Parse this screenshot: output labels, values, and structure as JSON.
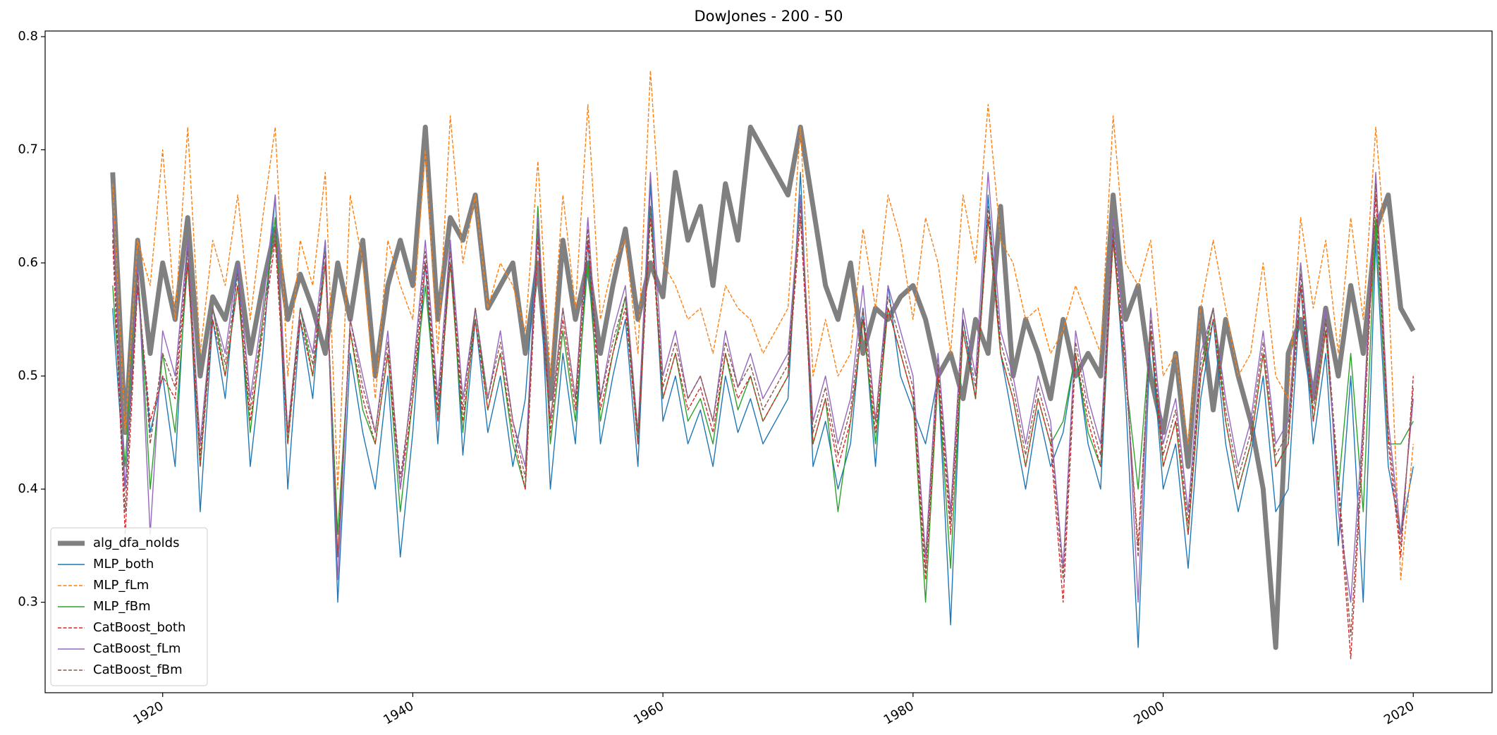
{
  "chart_data": {
    "type": "line",
    "title": "DowJones - 200 - 50",
    "x": [
      1916,
      1917,
      1918,
      1919,
      1920,
      1921,
      1922,
      1923,
      1924,
      1925,
      1926,
      1927,
      1928,
      1929,
      1930,
      1931,
      1932,
      1933,
      1934,
      1935,
      1936,
      1937,
      1938,
      1939,
      1940,
      1941,
      1942,
      1943,
      1944,
      1945,
      1946,
      1947,
      1948,
      1949,
      1950,
      1951,
      1952,
      1953,
      1954,
      1955,
      1956,
      1957,
      1958,
      1959,
      1960,
      1961,
      1962,
      1963,
      1964,
      1965,
      1966,
      1967,
      1968,
      1969,
      1970,
      1971,
      1972,
      1973,
      1974,
      1975,
      1976,
      1977,
      1978,
      1979,
      1980,
      1981,
      1982,
      1983,
      1984,
      1985,
      1986,
      1987,
      1988,
      1989,
      1990,
      1991,
      1992,
      1993,
      1994,
      1995,
      1996,
      1997,
      1998,
      1999,
      2000,
      2001,
      2002,
      2003,
      2004,
      2005,
      2006,
      2007,
      2008,
      2009,
      2010,
      2011,
      2012,
      2013,
      2014,
      2015,
      2016,
      2017,
      2018,
      2019,
      2020
    ],
    "series": [
      {
        "name": "alg_dfa_nolds",
        "color": "#808080",
        "linewidth": 7,
        "linestyle": "solid",
        "values": [
          0.68,
          0.45,
          0.62,
          0.52,
          0.6,
          0.55,
          0.64,
          0.5,
          0.57,
          0.55,
          0.6,
          0.52,
          0.58,
          0.63,
          0.55,
          0.59,
          0.56,
          0.52,
          0.6,
          0.55,
          0.62,
          0.5,
          0.58,
          0.62,
          0.58,
          0.72,
          0.55,
          0.64,
          0.62,
          0.66,
          0.56,
          0.58,
          0.6,
          0.52,
          0.6,
          0.48,
          0.62,
          0.55,
          0.6,
          0.52,
          0.58,
          0.63,
          0.55,
          0.6,
          0.57,
          0.68,
          0.62,
          0.65,
          0.58,
          0.67,
          0.62,
          0.72,
          0.7,
          0.68,
          0.66,
          0.72,
          0.65,
          0.58,
          0.55,
          0.6,
          0.52,
          0.56,
          0.55,
          0.57,
          0.58,
          0.55,
          0.5,
          0.52,
          0.48,
          0.55,
          0.52,
          0.65,
          0.5,
          0.55,
          0.52,
          0.48,
          0.55,
          0.5,
          0.52,
          0.5,
          0.66,
          0.55,
          0.58,
          0.5,
          0.45,
          0.52,
          0.42,
          0.56,
          0.47,
          0.55,
          0.5,
          0.46,
          0.4,
          0.26,
          0.52,
          0.55,
          0.48,
          0.56,
          0.5,
          0.58,
          0.52,
          0.63,
          0.66,
          0.56,
          0.54
        ]
      },
      {
        "name": "MLP_both",
        "color": "#1f77b4",
        "linewidth": 1.4,
        "linestyle": "solid",
        "values": [
          0.56,
          0.4,
          0.58,
          0.45,
          0.5,
          0.42,
          0.62,
          0.38,
          0.55,
          0.48,
          0.6,
          0.42,
          0.52,
          0.66,
          0.4,
          0.55,
          0.48,
          0.62,
          0.3,
          0.52,
          0.45,
          0.4,
          0.5,
          0.34,
          0.45,
          0.6,
          0.44,
          0.62,
          0.43,
          0.55,
          0.45,
          0.5,
          0.42,
          0.48,
          0.63,
          0.4,
          0.52,
          0.44,
          0.62,
          0.44,
          0.5,
          0.55,
          0.42,
          0.67,
          0.46,
          0.5,
          0.44,
          0.47,
          0.42,
          0.5,
          0.45,
          0.48,
          0.44,
          0.46,
          0.48,
          0.68,
          0.42,
          0.46,
          0.4,
          0.44,
          0.56,
          0.42,
          0.58,
          0.5,
          0.47,
          0.44,
          0.5,
          0.28,
          0.55,
          0.48,
          0.66,
          0.52,
          0.46,
          0.4,
          0.47,
          0.42,
          0.45,
          0.52,
          0.44,
          0.4,
          0.63,
          0.48,
          0.26,
          0.54,
          0.4,
          0.44,
          0.33,
          0.48,
          0.55,
          0.44,
          0.38,
          0.43,
          0.5,
          0.38,
          0.4,
          0.58,
          0.44,
          0.52,
          0.35,
          0.5,
          0.3,
          0.62,
          0.42,
          0.36,
          0.42
        ]
      },
      {
        "name": "MLP_fLm",
        "color": "#ff7f0e",
        "linewidth": 1.4,
        "linestyle": "dashed",
        "values": [
          0.67,
          0.45,
          0.62,
          0.58,
          0.7,
          0.55,
          0.72,
          0.52,
          0.62,
          0.58,
          0.66,
          0.55,
          0.64,
          0.72,
          0.5,
          0.62,
          0.58,
          0.68,
          0.4,
          0.66,
          0.6,
          0.48,
          0.62,
          0.58,
          0.55,
          0.7,
          0.52,
          0.73,
          0.6,
          0.66,
          0.56,
          0.6,
          0.58,
          0.54,
          0.69,
          0.5,
          0.66,
          0.56,
          0.74,
          0.55,
          0.6,
          0.62,
          0.52,
          0.77,
          0.6,
          0.58,
          0.55,
          0.56,
          0.52,
          0.58,
          0.56,
          0.55,
          0.52,
          0.54,
          0.56,
          0.72,
          0.5,
          0.55,
          0.5,
          0.52,
          0.63,
          0.56,
          0.66,
          0.62,
          0.55,
          0.64,
          0.6,
          0.52,
          0.66,
          0.6,
          0.74,
          0.62,
          0.6,
          0.55,
          0.56,
          0.52,
          0.54,
          0.58,
          0.55,
          0.52,
          0.73,
          0.6,
          0.58,
          0.62,
          0.5,
          0.52,
          0.44,
          0.56,
          0.62,
          0.56,
          0.5,
          0.52,
          0.6,
          0.5,
          0.48,
          0.64,
          0.56,
          0.62,
          0.52,
          0.64,
          0.55,
          0.72,
          0.58,
          0.32,
          0.44
        ]
      },
      {
        "name": "MLP_fBm",
        "color": "#2ca02c",
        "linewidth": 1.4,
        "linestyle": "solid",
        "values": [
          0.58,
          0.42,
          0.6,
          0.4,
          0.52,
          0.45,
          0.6,
          0.42,
          0.56,
          0.5,
          0.58,
          0.45,
          0.55,
          0.64,
          0.44,
          0.56,
          0.5,
          0.6,
          0.36,
          0.54,
          0.47,
          0.44,
          0.52,
          0.38,
          0.48,
          0.58,
          0.46,
          0.6,
          0.45,
          0.56,
          0.47,
          0.52,
          0.44,
          0.4,
          0.65,
          0.44,
          0.54,
          0.46,
          0.6,
          0.46,
          0.52,
          0.57,
          0.44,
          0.65,
          0.48,
          0.52,
          0.46,
          0.48,
          0.44,
          0.52,
          0.47,
          0.5,
          0.46,
          0.48,
          0.5,
          0.66,
          0.44,
          0.48,
          0.38,
          0.46,
          0.55,
          0.44,
          0.56,
          0.52,
          0.48,
          0.3,
          0.5,
          0.33,
          0.54,
          0.48,
          0.64,
          0.52,
          0.48,
          0.42,
          0.48,
          0.44,
          0.46,
          0.52,
          0.45,
          0.42,
          0.62,
          0.5,
          0.4,
          0.54,
          0.42,
          0.46,
          0.36,
          0.5,
          0.56,
          0.46,
          0.4,
          0.44,
          0.52,
          0.42,
          0.44,
          0.6,
          0.46,
          0.54,
          0.4,
          0.52,
          0.38,
          0.64,
          0.44,
          0.44,
          0.46
        ]
      },
      {
        "name": "CatBoost_both",
        "color": "#d62728",
        "linewidth": 1.4,
        "linestyle": "dashed",
        "values": [
          0.62,
          0.36,
          0.58,
          0.46,
          0.5,
          0.48,
          0.6,
          0.42,
          0.55,
          0.5,
          0.58,
          0.46,
          0.54,
          0.62,
          0.44,
          0.55,
          0.5,
          0.6,
          0.34,
          0.54,
          0.48,
          0.44,
          0.52,
          0.4,
          0.48,
          0.6,
          0.46,
          0.6,
          0.46,
          0.55,
          0.47,
          0.52,
          0.45,
          0.4,
          0.62,
          0.45,
          0.55,
          0.47,
          0.62,
          0.47,
          0.52,
          0.56,
          0.44,
          0.64,
          0.48,
          0.52,
          0.47,
          0.49,
          0.45,
          0.52,
          0.48,
          0.5,
          0.46,
          0.48,
          0.5,
          0.64,
          0.44,
          0.48,
          0.42,
          0.46,
          0.55,
          0.45,
          0.56,
          0.52,
          0.48,
          0.32,
          0.5,
          0.36,
          0.54,
          0.48,
          0.64,
          0.52,
          0.48,
          0.42,
          0.48,
          0.44,
          0.3,
          0.52,
          0.46,
          0.42,
          0.62,
          0.5,
          0.35,
          0.54,
          0.42,
          0.46,
          0.36,
          0.5,
          0.55,
          0.46,
          0.4,
          0.44,
          0.52,
          0.42,
          0.44,
          0.58,
          0.46,
          0.54,
          0.4,
          0.25,
          0.44,
          0.66,
          0.44,
          0.34,
          0.5
        ]
      },
      {
        "name": "CatBoost_fLm",
        "color": "#9467bd",
        "linewidth": 1.4,
        "linestyle": "solid",
        "values": [
          0.64,
          0.4,
          0.6,
          0.36,
          0.54,
          0.5,
          0.62,
          0.44,
          0.56,
          0.52,
          0.6,
          0.48,
          0.56,
          0.66,
          0.45,
          0.56,
          0.52,
          0.62,
          0.32,
          0.55,
          0.5,
          0.45,
          0.54,
          0.4,
          0.5,
          0.62,
          0.48,
          0.62,
          0.48,
          0.56,
          0.48,
          0.54,
          0.46,
          0.42,
          0.64,
          0.46,
          0.56,
          0.48,
          0.64,
          0.48,
          0.54,
          0.58,
          0.45,
          0.68,
          0.5,
          0.54,
          0.48,
          0.5,
          0.46,
          0.54,
          0.49,
          0.52,
          0.48,
          0.5,
          0.52,
          0.66,
          0.46,
          0.5,
          0.44,
          0.48,
          0.58,
          0.46,
          0.58,
          0.54,
          0.5,
          0.34,
          0.52,
          0.38,
          0.56,
          0.5,
          0.68,
          0.54,
          0.5,
          0.44,
          0.5,
          0.46,
          0.33,
          0.54,
          0.48,
          0.44,
          0.64,
          0.52,
          0.3,
          0.56,
          0.44,
          0.48,
          0.38,
          0.52,
          0.56,
          0.48,
          0.42,
          0.46,
          0.54,
          0.44,
          0.46,
          0.6,
          0.48,
          0.56,
          0.38,
          0.3,
          0.46,
          0.68,
          0.46,
          0.36,
          0.48
        ]
      },
      {
        "name": "CatBoost_fBm",
        "color": "#8c564b",
        "linewidth": 1.4,
        "linestyle": "dashed",
        "values": [
          0.63,
          0.38,
          0.59,
          0.44,
          0.52,
          0.49,
          0.61,
          0.43,
          0.56,
          0.51,
          0.59,
          0.47,
          0.55,
          0.63,
          0.45,
          0.56,
          0.51,
          0.61,
          0.34,
          0.55,
          0.49,
          0.45,
          0.53,
          0.41,
          0.49,
          0.61,
          0.47,
          0.61,
          0.47,
          0.56,
          0.48,
          0.53,
          0.46,
          0.41,
          0.63,
          0.46,
          0.56,
          0.48,
          0.63,
          0.48,
          0.53,
          0.57,
          0.45,
          0.65,
          0.49,
          0.53,
          0.48,
          0.5,
          0.46,
          0.53,
          0.49,
          0.51,
          0.47,
          0.49,
          0.51,
          0.65,
          0.45,
          0.49,
          0.43,
          0.47,
          0.56,
          0.46,
          0.57,
          0.53,
          0.49,
          0.33,
          0.51,
          0.37,
          0.55,
          0.49,
          0.65,
          0.53,
          0.49,
          0.43,
          0.49,
          0.45,
          0.32,
          0.53,
          0.47,
          0.43,
          0.63,
          0.51,
          0.34,
          0.55,
          0.43,
          0.47,
          0.37,
          0.51,
          0.56,
          0.47,
          0.41,
          0.45,
          0.53,
          0.43,
          0.45,
          0.59,
          0.47,
          0.55,
          0.41,
          0.27,
          0.45,
          0.67,
          0.45,
          0.35,
          0.49
        ]
      }
    ],
    "xlim": [
      1910.6,
      2026.3
    ],
    "xticks": [
      1920,
      1940,
      1960,
      1980,
      2000,
      2020
    ],
    "ylim": [
      0.22,
      0.805
    ],
    "yticks": [
      0.3,
      0.4,
      0.5,
      0.6,
      0.7,
      0.8
    ],
    "legend": "lower left"
  }
}
